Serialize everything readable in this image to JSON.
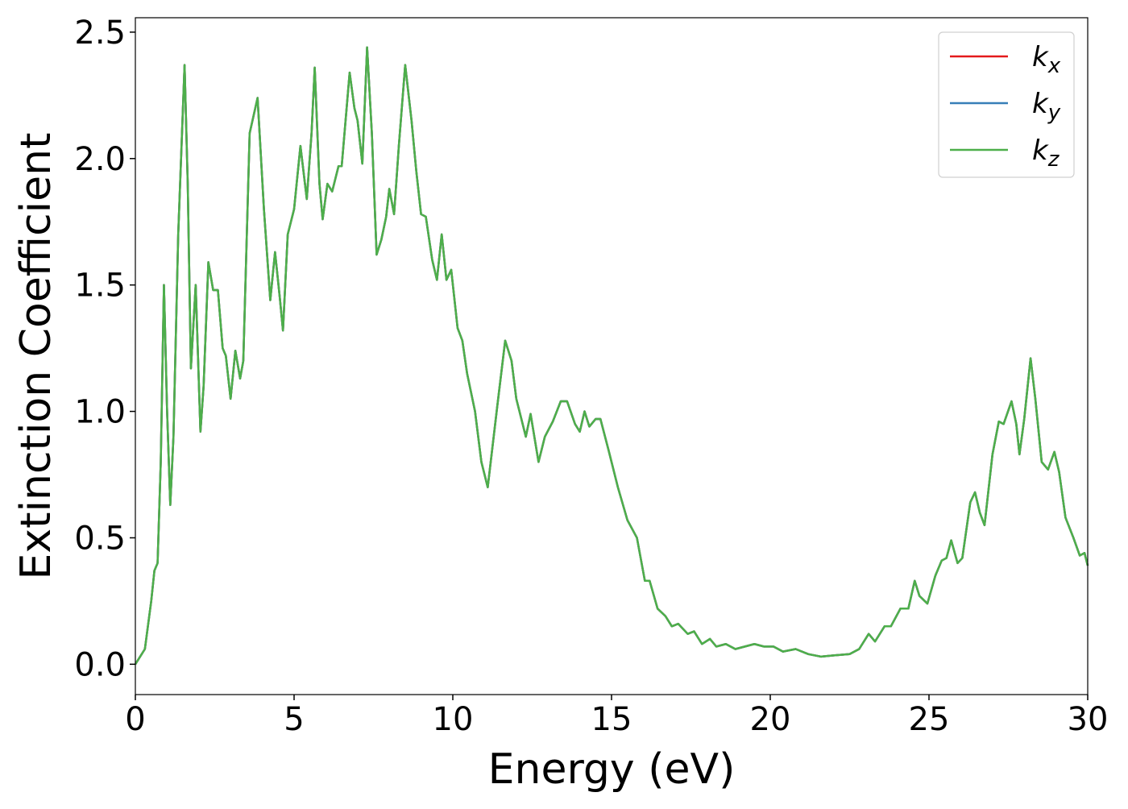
{
  "chart_data": {
    "type": "line",
    "xlabel": "Energy (eV)",
    "ylabel": "Extinction Coefficient",
    "xlim": [
      0,
      30
    ],
    "ylim": [
      -0.12,
      2.557
    ],
    "xticks": [
      0,
      5,
      10,
      15,
      20,
      25,
      30
    ],
    "yticks": [
      {
        "value": 0,
        "label": "0.0"
      },
      {
        "value": 0.5,
        "label": "0.5"
      },
      {
        "value": 1,
        "label": "1.0"
      },
      {
        "value": 1.5,
        "label": "1.5"
      },
      {
        "value": 2,
        "label": "2.0"
      },
      {
        "value": 2.5,
        "label": "2.5"
      }
    ],
    "legend": "upper right",
    "grid": false,
    "x": [
      0,
      0.3,
      0.5,
      0.6,
      0.7,
      0.8,
      0.9,
      1.0,
      1.1,
      1.2,
      1.35,
      1.55,
      1.65,
      1.75,
      1.9,
      2.05,
      2.15,
      2.3,
      2.45,
      2.6,
      2.75,
      2.85,
      3.0,
      3.15,
      3.3,
      3.4,
      3.6,
      3.85,
      4.05,
      4.25,
      4.4,
      4.55,
      4.65,
      4.8,
      5.0,
      5.2,
      5.4,
      5.55,
      5.65,
      5.8,
      5.9,
      6.05,
      6.2,
      6.4,
      6.5,
      6.75,
      6.9,
      7.0,
      7.15,
      7.3,
      7.45,
      7.6,
      7.75,
      7.9,
      8.0,
      8.15,
      8.3,
      8.5,
      8.7,
      8.85,
      9.0,
      9.15,
      9.35,
      9.5,
      9.65,
      9.8,
      9.95,
      10.15,
      10.3,
      10.45,
      10.7,
      10.9,
      11.1,
      11.4,
      11.65,
      11.85,
      12.0,
      12.3,
      12.45,
      12.7,
      12.9,
      13.15,
      13.4,
      13.6,
      13.85,
      14.0,
      14.15,
      14.3,
      14.5,
      14.65,
      14.9,
      15.2,
      15.5,
      15.8,
      16.05,
      16.2,
      16.45,
      16.7,
      16.9,
      17.1,
      17.4,
      17.6,
      17.85,
      18.1,
      18.3,
      18.6,
      18.9,
      19.2,
      19.5,
      19.8,
      20.1,
      20.4,
      20.8,
      21.2,
      21.6,
      22.0,
      22.5,
      22.8,
      23.1,
      23.3,
      23.6,
      23.8,
      24.1,
      24.35,
      24.55,
      24.7,
      24.95,
      25.2,
      25.4,
      25.55,
      25.7,
      25.9,
      26.05,
      26.3,
      26.45,
      26.6,
      26.75,
      27.0,
      27.2,
      27.35,
      27.6,
      27.75,
      27.85,
      28.0,
      28.2,
      28.35,
      28.55,
      28.75,
      28.95,
      29.1,
      29.3,
      29.55,
      29.75,
      29.9,
      30.0
    ],
    "series": [
      {
        "name": "k_x",
        "color": "#e41a1c",
        "values": [
          0,
          0.06,
          0.25,
          0.37,
          0.4,
          0.8,
          1.5,
          1.0,
          0.63,
          0.9,
          1.7,
          2.37,
          1.9,
          1.17,
          1.5,
          0.92,
          1.1,
          1.59,
          1.48,
          1.48,
          1.25,
          1.22,
          1.05,
          1.24,
          1.13,
          1.2,
          2.1,
          2.24,
          1.8,
          1.44,
          1.63,
          1.45,
          1.32,
          1.7,
          1.8,
          2.05,
          1.84,
          2.1,
          2.36,
          1.9,
          1.76,
          1.9,
          1.87,
          1.97,
          1.97,
          2.34,
          2.2,
          2.15,
          1.98,
          2.44,
          2.1,
          1.62,
          1.68,
          1.77,
          1.88,
          1.78,
          2.05,
          2.37,
          2.15,
          1.95,
          1.78,
          1.77,
          1.6,
          1.52,
          1.7,
          1.52,
          1.56,
          1.33,
          1.28,
          1.15,
          1.0,
          0.8,
          0.7,
          1.02,
          1.28,
          1.2,
          1.05,
          0.9,
          0.99,
          0.8,
          0.9,
          0.96,
          1.04,
          1.04,
          0.95,
          0.92,
          1.0,
          0.94,
          0.97,
          0.97,
          0.85,
          0.7,
          0.57,
          0.5,
          0.33,
          0.33,
          0.22,
          0.19,
          0.15,
          0.16,
          0.12,
          0.13,
          0.08,
          0.1,
          0.07,
          0.08,
          0.06,
          0.07,
          0.08,
          0.07,
          0.07,
          0.05,
          0.06,
          0.04,
          0.03,
          0.035,
          0.04,
          0.06,
          0.12,
          0.09,
          0.15,
          0.15,
          0.22,
          0.22,
          0.33,
          0.27,
          0.24,
          0.35,
          0.41,
          0.42,
          0.49,
          0.4,
          0.42,
          0.64,
          0.68,
          0.6,
          0.55,
          0.83,
          0.96,
          0.95,
          1.04,
          0.95,
          0.83,
          0.97,
          1.21,
          1.05,
          0.8,
          0.77,
          0.84,
          0.76,
          0.58,
          0.5,
          0.43,
          0.44,
          0.39
        ]
      },
      {
        "name": "k_y",
        "color": "#377eb8",
        "values": [
          0,
          0.06,
          0.25,
          0.37,
          0.4,
          0.8,
          1.5,
          1.0,
          0.63,
          0.9,
          1.7,
          2.37,
          1.9,
          1.17,
          1.5,
          0.92,
          1.1,
          1.59,
          1.48,
          1.48,
          1.25,
          1.22,
          1.05,
          1.24,
          1.13,
          1.2,
          2.1,
          2.24,
          1.8,
          1.44,
          1.63,
          1.45,
          1.32,
          1.7,
          1.8,
          2.05,
          1.84,
          2.1,
          2.36,
          1.9,
          1.76,
          1.9,
          1.87,
          1.97,
          1.97,
          2.34,
          2.2,
          2.15,
          1.98,
          2.44,
          2.1,
          1.62,
          1.68,
          1.77,
          1.88,
          1.78,
          2.05,
          2.37,
          2.15,
          1.95,
          1.78,
          1.77,
          1.6,
          1.52,
          1.7,
          1.52,
          1.56,
          1.33,
          1.28,
          1.15,
          1.0,
          0.8,
          0.7,
          1.02,
          1.28,
          1.2,
          1.05,
          0.9,
          0.99,
          0.8,
          0.9,
          0.96,
          1.04,
          1.04,
          0.95,
          0.92,
          1.0,
          0.94,
          0.97,
          0.97,
          0.85,
          0.7,
          0.57,
          0.5,
          0.33,
          0.33,
          0.22,
          0.19,
          0.15,
          0.16,
          0.12,
          0.13,
          0.08,
          0.1,
          0.07,
          0.08,
          0.06,
          0.07,
          0.08,
          0.07,
          0.07,
          0.05,
          0.06,
          0.04,
          0.03,
          0.035,
          0.04,
          0.06,
          0.12,
          0.09,
          0.15,
          0.15,
          0.22,
          0.22,
          0.33,
          0.27,
          0.24,
          0.35,
          0.41,
          0.42,
          0.49,
          0.4,
          0.42,
          0.64,
          0.68,
          0.6,
          0.55,
          0.83,
          0.96,
          0.95,
          1.04,
          0.95,
          0.83,
          0.97,
          1.21,
          1.05,
          0.8,
          0.77,
          0.84,
          0.76,
          0.58,
          0.5,
          0.43,
          0.44,
          0.39
        ]
      },
      {
        "name": "k_z",
        "color": "#4daf4a",
        "values": [
          0,
          0.06,
          0.25,
          0.37,
          0.4,
          0.8,
          1.5,
          1.0,
          0.63,
          0.9,
          1.7,
          2.37,
          1.9,
          1.17,
          1.5,
          0.92,
          1.1,
          1.59,
          1.48,
          1.48,
          1.25,
          1.22,
          1.05,
          1.24,
          1.13,
          1.2,
          2.1,
          2.24,
          1.8,
          1.44,
          1.63,
          1.45,
          1.32,
          1.7,
          1.8,
          2.05,
          1.84,
          2.1,
          2.36,
          1.9,
          1.76,
          1.9,
          1.87,
          1.97,
          1.97,
          2.34,
          2.2,
          2.15,
          1.98,
          2.44,
          2.1,
          1.62,
          1.68,
          1.77,
          1.88,
          1.78,
          2.05,
          2.37,
          2.15,
          1.95,
          1.78,
          1.77,
          1.6,
          1.52,
          1.7,
          1.52,
          1.56,
          1.33,
          1.28,
          1.15,
          1.0,
          0.8,
          0.7,
          1.02,
          1.28,
          1.2,
          1.05,
          0.9,
          0.99,
          0.8,
          0.9,
          0.96,
          1.04,
          1.04,
          0.95,
          0.92,
          1.0,
          0.94,
          0.97,
          0.97,
          0.85,
          0.7,
          0.57,
          0.5,
          0.33,
          0.33,
          0.22,
          0.19,
          0.15,
          0.16,
          0.12,
          0.13,
          0.08,
          0.1,
          0.07,
          0.08,
          0.06,
          0.07,
          0.08,
          0.07,
          0.07,
          0.05,
          0.06,
          0.04,
          0.03,
          0.035,
          0.04,
          0.06,
          0.12,
          0.09,
          0.15,
          0.15,
          0.22,
          0.22,
          0.33,
          0.27,
          0.24,
          0.35,
          0.41,
          0.42,
          0.49,
          0.4,
          0.42,
          0.64,
          0.68,
          0.6,
          0.55,
          0.83,
          0.96,
          0.95,
          1.04,
          0.95,
          0.83,
          0.97,
          1.21,
          1.05,
          0.8,
          0.77,
          0.84,
          0.76,
          0.58,
          0.5,
          0.43,
          0.44,
          0.39
        ]
      }
    ]
  }
}
